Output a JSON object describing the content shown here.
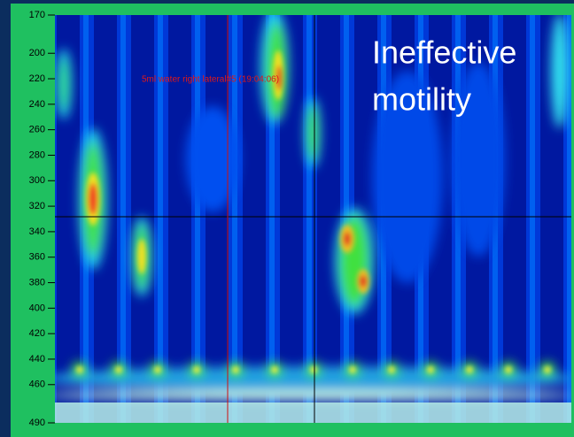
{
  "chart_data": {
    "type": "heatmap",
    "title_lines": [
      "Ineffective",
      "motility"
    ],
    "annotation": "5ml water right lateral#5 (19:04:06)",
    "ylim": [
      170,
      490
    ],
    "y_inverted": true,
    "yticks": [
      170,
      200,
      220,
      240,
      260,
      280,
      300,
      320,
      340,
      360,
      380,
      400,
      420,
      440,
      460,
      490
    ]
  }
}
